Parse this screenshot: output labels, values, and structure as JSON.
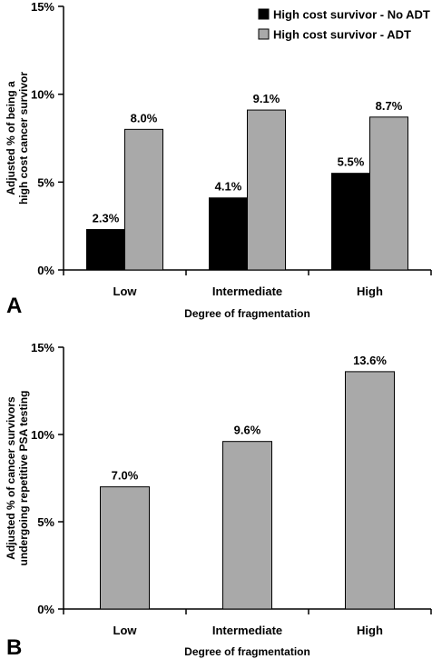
{
  "chart_data": [
    {
      "type": "bar",
      "panel_label": "A",
      "categories": [
        "Low",
        "Intermediate",
        "High"
      ],
      "series": [
        {
          "name": "High cost survivor - No ADT",
          "color": "#000000",
          "values": [
            2.3,
            4.1,
            5.5
          ]
        },
        {
          "name": "High cost survivor - ADT",
          "color": "#a9a9a9",
          "values": [
            8.0,
            9.1,
            8.7
          ]
        }
      ],
      "data_labels": [
        [
          "2.3%",
          "4.1%",
          "5.5%"
        ],
        [
          "8.0%",
          "9.1%",
          "8.7%"
        ]
      ],
      "xlabel": "Degree of fragmentation",
      "ylabel_lines": [
        "Adjusted % of being a",
        "high cost cancer survivor"
      ],
      "ylim": [
        0,
        15
      ],
      "yticks": [
        0,
        5,
        10,
        15
      ],
      "ytick_labels": [
        "0%",
        "5%",
        "10%",
        "15%"
      ],
      "legend": "top-right",
      "grid": false
    },
    {
      "type": "bar",
      "panel_label": "B",
      "categories": [
        "Low",
        "Intermediate",
        "High"
      ],
      "series": [
        {
          "color": "#a9a9a9",
          "values": [
            7.0,
            9.6,
            13.6
          ]
        }
      ],
      "data_labels": [
        [
          "7.0%",
          "9.6%",
          "13.6%"
        ]
      ],
      "xlabel": "Degree of fragmentation",
      "ylabel_lines": [
        "Adjusted % of cancer survivors",
        "undergoing repetitive PSA testing"
      ],
      "ylim": [
        0,
        15
      ],
      "yticks": [
        0,
        5,
        10,
        15
      ],
      "ytick_labels": [
        "0%",
        "5%",
        "10%",
        "15%"
      ],
      "grid": false
    }
  ]
}
